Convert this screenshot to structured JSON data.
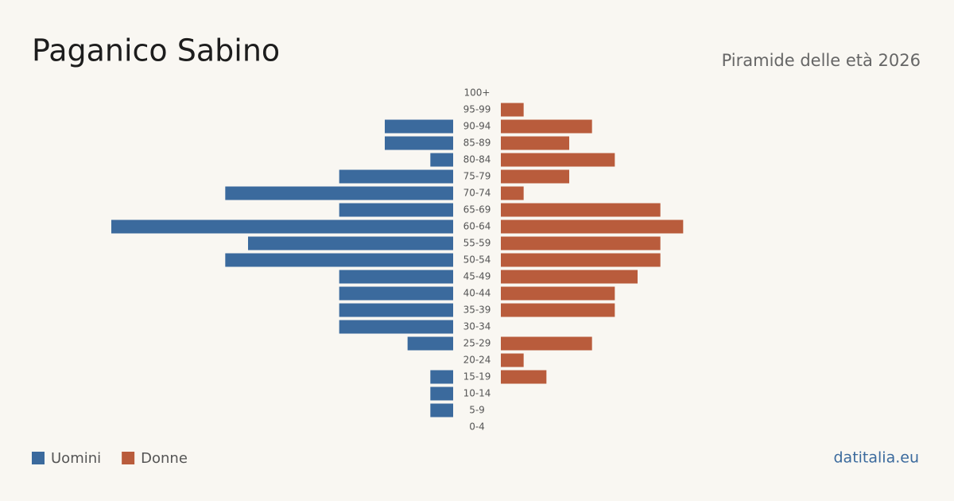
{
  "chart_data": {
    "type": "pyramid",
    "title": "Paganico Sabino",
    "subtitle": "Piramide delle età 2026",
    "source": "datitalia.eu",
    "categories": [
      "100+",
      "95-99",
      "90-94",
      "85-89",
      "80-84",
      "75-79",
      "70-74",
      "65-69",
      "60-64",
      "55-59",
      "50-54",
      "45-49",
      "40-44",
      "35-39",
      "30-34",
      "25-29",
      "20-24",
      "15-19",
      "10-14",
      "5-9",
      "0-4"
    ],
    "series": [
      {
        "name": "Uomini",
        "color": "#3b6a9d",
        "values": [
          0,
          0,
          3,
          3,
          1,
          5,
          10,
          5,
          15,
          9,
          10,
          5,
          5,
          5,
          5,
          2,
          0,
          1,
          1,
          1,
          0
        ]
      },
      {
        "name": "Donne",
        "color": "#b95c3c",
        "values": [
          0,
          1,
          4,
          3,
          5,
          3,
          1,
          7,
          8,
          7,
          7,
          6,
          5,
          5,
          0,
          4,
          1,
          2,
          0,
          0,
          0
        ]
      }
    ]
  }
}
